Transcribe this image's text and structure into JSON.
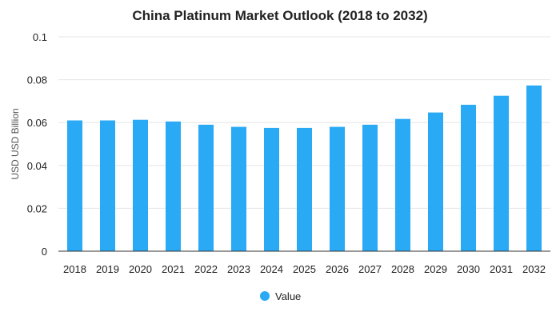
{
  "chart_data": {
    "type": "bar",
    "title": "China Platinum Market Outlook (2018 to 2032)",
    "xlabel": "",
    "ylabel": "USD USD Billion",
    "ylim": [
      0,
      0.1
    ],
    "yticks": [
      "0",
      "0.02",
      "0.04",
      "0.06",
      "0.08",
      "0.1"
    ],
    "categories": [
      "2018",
      "2019",
      "2020",
      "2021",
      "2022",
      "2023",
      "2024",
      "2025",
      "2026",
      "2027",
      "2028",
      "2029",
      "2030",
      "2031",
      "2032"
    ],
    "series": [
      {
        "name": "Value",
        "color": "#2aa9f5",
        "values": [
          0.061,
          0.061,
          0.0613,
          0.0605,
          0.059,
          0.058,
          0.0575,
          0.0575,
          0.058,
          0.059,
          0.0617,
          0.0647,
          0.0683,
          0.0725,
          0.0773
        ]
      }
    ],
    "grid": true,
    "legend": "bottom-center"
  }
}
